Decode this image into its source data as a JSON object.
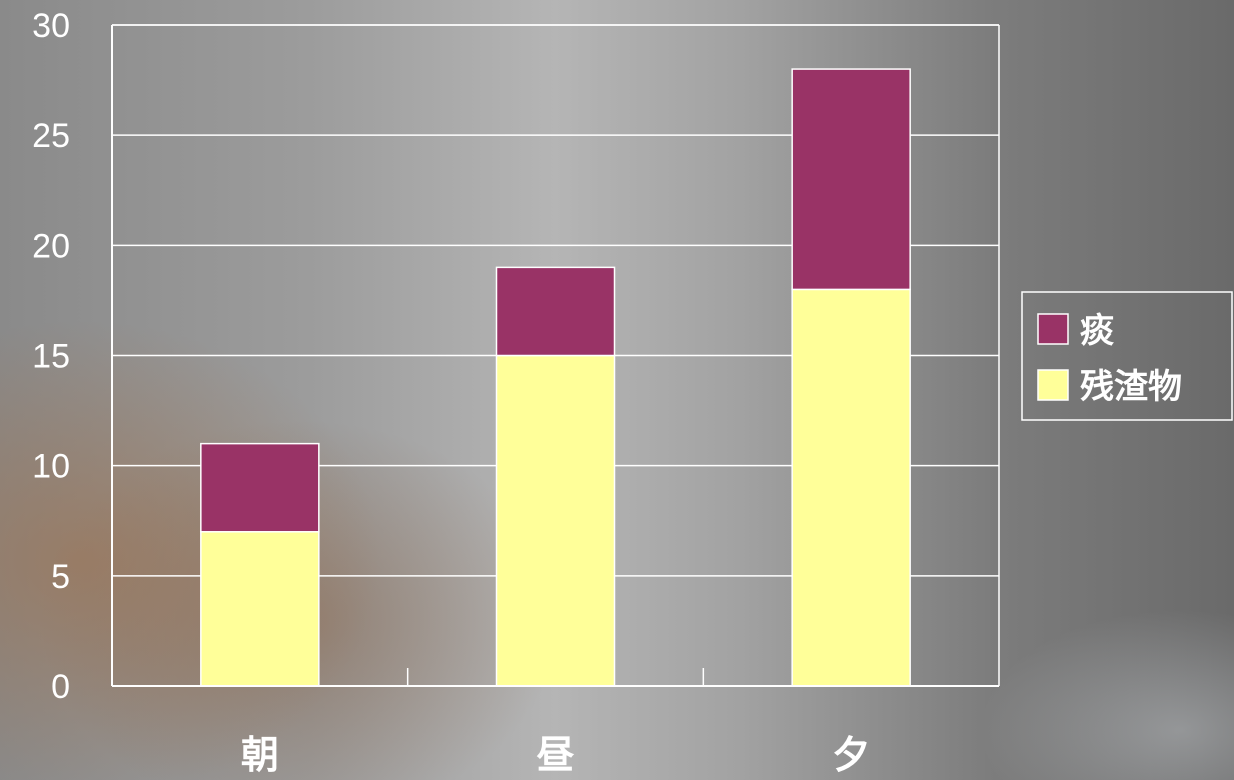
{
  "chart_data": {
    "type": "bar",
    "stacked": true,
    "categories": [
      "朝",
      "昼",
      "夕"
    ],
    "series": [
      {
        "name": "残渣物",
        "values": [
          7,
          15,
          18
        ],
        "color": "#ffff99"
      },
      {
        "name": "痰",
        "values": [
          4,
          4,
          10
        ],
        "color": "#993366"
      }
    ],
    "ylim": [
      0,
      30
    ],
    "yticks": [
      "0",
      "5",
      "10",
      "15",
      "20",
      "25",
      "30"
    ],
    "grid": true,
    "legend": "right",
    "legend_entries": [
      "痰",
      "残渣物"
    ],
    "colors": {
      "axis": "#ffffff",
      "grid": "#ffffff",
      "bar_stroke": "#ffffff"
    }
  }
}
